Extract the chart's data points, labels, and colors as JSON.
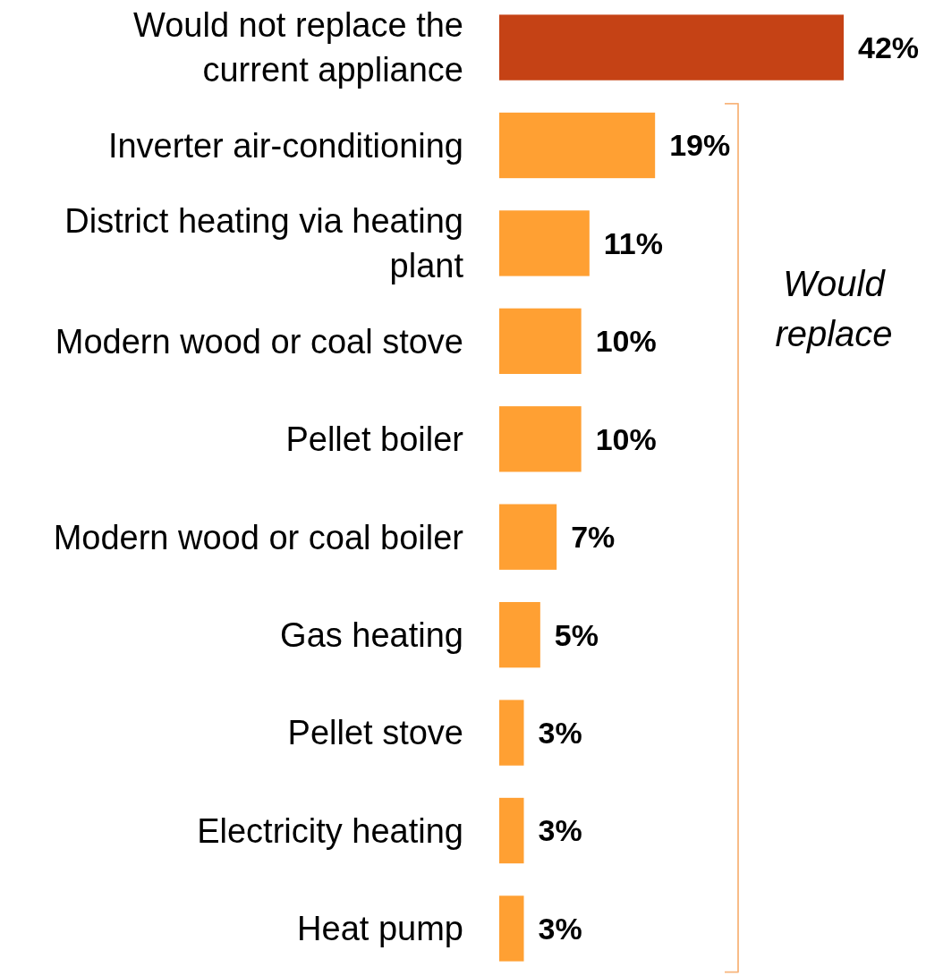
{
  "chart_data": {
    "type": "bar",
    "orientation": "horizontal",
    "categories": [
      "Would not replace the current appliance",
      "Inverter air-conditioning",
      "District heating via heating plant",
      "Modern wood or coal stove",
      "Pellet boiler",
      "Modern wood or coal boiler",
      "Gas heating",
      "Pellet stove",
      "Electricity heating",
      "Heat pump"
    ],
    "values": [
      42,
      19,
      11,
      10,
      10,
      7,
      5,
      3,
      3,
      3
    ],
    "colors": [
      "#c54215",
      "#ffa033",
      "#ffa033",
      "#ffa033",
      "#ffa033",
      "#ffa033",
      "#ffa033",
      "#ffa033",
      "#ffa033",
      "#ffa033"
    ],
    "value_labels": [
      "42%",
      "19%",
      "11%",
      "10%",
      "10%",
      "7%",
      "5%",
      "3%",
      "3%",
      "3%"
    ],
    "annotations": [
      "Would replace"
    ]
  }
}
